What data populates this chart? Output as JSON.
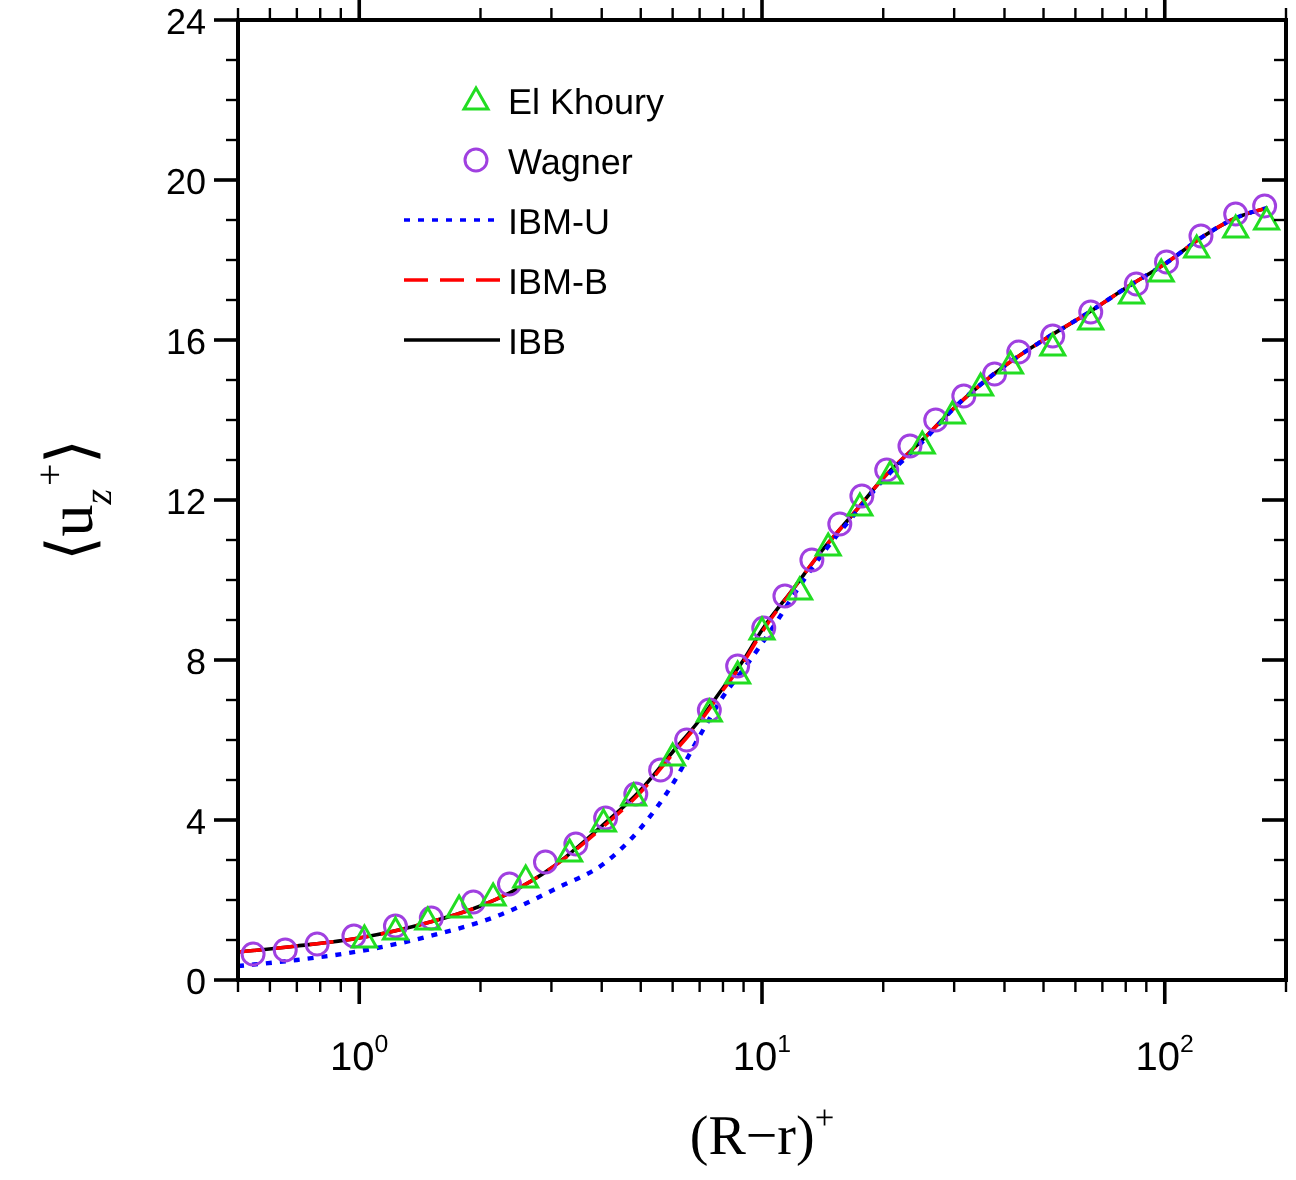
{
  "chart_data": {
    "type": "line",
    "xlabel": "(R−r)$^{+}$",
    "ylabel": "⟨u$_{z}$$^{+}$⟩",
    "log": "x",
    "xlim": [
      0.5,
      200
    ],
    "ylim": [
      0,
      24
    ],
    "xticks": [
      {
        "value": 0.5,
        "label": null
      },
      {
        "value": 0.6,
        "label": null
      },
      {
        "value": 0.7,
        "label": null
      },
      {
        "value": 0.8,
        "label": null
      },
      {
        "value": 0.9,
        "label": null
      },
      {
        "value": 1,
        "label": "10$^{0}$"
      },
      {
        "value": 2,
        "label": null
      },
      {
        "value": 3,
        "label": null
      },
      {
        "value": 4,
        "label": null
      },
      {
        "value": 5,
        "label": null
      },
      {
        "value": 6,
        "label": null
      },
      {
        "value": 7,
        "label": null
      },
      {
        "value": 8,
        "label": null
      },
      {
        "value": 9,
        "label": null
      },
      {
        "value": 10,
        "label": "10$^{1}$"
      },
      {
        "value": 20,
        "label": null
      },
      {
        "value": 30,
        "label": null
      },
      {
        "value": 40,
        "label": null
      },
      {
        "value": 50,
        "label": null
      },
      {
        "value": 60,
        "label": null
      },
      {
        "value": 70,
        "label": null
      },
      {
        "value": 80,
        "label": null
      },
      {
        "value": 90,
        "label": null
      },
      {
        "value": 100,
        "label": "10$^{2}$"
      },
      {
        "value": 200,
        "label": null
      }
    ],
    "yticks": [
      0,
      {
        "value": 1,
        "label": null
      },
      {
        "value": 2,
        "label": null
      },
      {
        "value": 3,
        "label": null
      },
      4,
      {
        "value": 5,
        "label": null
      },
      {
        "value": 6,
        "label": null
      },
      {
        "value": 7,
        "label": null
      },
      8,
      {
        "value": 9,
        "label": null
      },
      {
        "value": 10,
        "label": null
      },
      {
        "value": 11,
        "label": null
      },
      12,
      {
        "value": 13,
        "label": null
      },
      {
        "value": 14,
        "label": null
      },
      {
        "value": 15,
        "label": null
      },
      16,
      {
        "value": 17,
        "label": null
      },
      {
        "value": 18,
        "label": null
      },
      {
        "value": 19,
        "label": null
      },
      20,
      {
        "value": 21,
        "label": null
      },
      {
        "value": 22,
        "label": null
      },
      {
        "value": 23,
        "label": null
      },
      24
    ],
    "grid": false,
    "legend": "top left",
    "series": [
      {
        "name": "El Khoury",
        "type": "scatter",
        "marker": "triangle",
        "color": "#22dd22",
        "x": [
          1.03,
          1.23,
          1.48,
          1.77,
          2.15,
          2.59,
          3.33,
          4.04,
          4.8,
          6.0,
          7.4,
          8.7,
          10,
          12.4,
          14.6,
          17.5,
          20.8,
          25,
          29.7,
          34.9,
          41.4,
          52.7,
          65.5,
          82.7,
          98,
          120,
          150,
          179
        ],
        "values": [
          1.05,
          1.25,
          1.5,
          1.8,
          2.1,
          2.55,
          3.2,
          3.95,
          4.6,
          5.6,
          6.7,
          7.65,
          8.75,
          9.75,
          10.85,
          11.85,
          12.65,
          13.4,
          14.15,
          14.85,
          15.4,
          15.85,
          16.5,
          17.15,
          17.7,
          18.3,
          18.8,
          19.0
        ]
      },
      {
        "name": "Wagner",
        "type": "scatter",
        "marker": "circle",
        "color": "#a040e0",
        "x": [
          0.545,
          0.655,
          0.786,
          0.97,
          1.23,
          1.51,
          1.92,
          2.36,
          2.9,
          3.45,
          4.09,
          4.86,
          5.6,
          6.5,
          7.4,
          8.7,
          10.1,
          11.4,
          13.3,
          15.6,
          17.7,
          20.4,
          23.3,
          27,
          31.7,
          37.8,
          43.4,
          52.7,
          65.5,
          85,
          101,
          123,
          150,
          177
        ],
        "values": [
          0.65,
          0.75,
          0.9,
          1.1,
          1.35,
          1.55,
          1.95,
          2.4,
          2.95,
          3.4,
          4.05,
          4.65,
          5.25,
          6.0,
          6.75,
          7.85,
          8.8,
          9.6,
          10.5,
          11.4,
          12.1,
          12.75,
          13.35,
          14.0,
          14.6,
          15.15,
          15.7,
          16.1,
          16.7,
          17.4,
          17.95,
          18.6,
          19.15,
          19.35
        ]
      },
      {
        "name": "IBM-U",
        "line_style": "dotted",
        "color": "#0000ff",
        "x": [
          0.5,
          0.7,
          1,
          1.5,
          2.2,
          3.1,
          4.1,
          5,
          6,
          7,
          7.9,
          9.2,
          10.7,
          12.4,
          14.5,
          17,
          20,
          25,
          30,
          40,
          50,
          65,
          80,
          100,
          125,
          150,
          180
        ],
        "values": [
          0.35,
          0.5,
          0.72,
          1.1,
          1.6,
          2.3,
          2.95,
          3.8,
          4.9,
          6.1,
          7.0,
          7.9,
          8.85,
          9.85,
          10.8,
          11.65,
          12.5,
          13.45,
          14.3,
          15.35,
          16.0,
          16.7,
          17.3,
          17.9,
          18.6,
          19.05,
          19.3
        ]
      },
      {
        "name": "IBM-B",
        "line_style": "dashed",
        "color": "#ff0000",
        "x": [
          0.5,
          0.7,
          1,
          1.5,
          2,
          3,
          4,
          5,
          6,
          7,
          8,
          9,
          10,
          12,
          14,
          17,
          20,
          25,
          30,
          40,
          50,
          65,
          80,
          100,
          125,
          150,
          180
        ],
        "values": [
          0.7,
          0.85,
          1.05,
          1.45,
          1.85,
          2.8,
          3.8,
          4.7,
          5.65,
          6.45,
          7.25,
          7.95,
          8.7,
          9.8,
          10.7,
          11.7,
          12.55,
          13.5,
          14.3,
          15.35,
          16.0,
          16.7,
          17.3,
          17.9,
          18.6,
          19.05,
          19.3
        ]
      },
      {
        "name": "IBB",
        "line_style": "solid",
        "color": "#000000",
        "x": [
          0.5,
          0.7,
          1,
          1.5,
          2,
          3,
          4,
          5,
          6,
          7,
          8,
          9,
          10,
          12,
          14,
          17,
          20,
          25,
          30,
          40,
          50,
          65,
          80,
          100,
          125,
          150,
          180
        ],
        "values": [
          0.7,
          0.85,
          1.05,
          1.45,
          1.85,
          2.8,
          3.85,
          4.75,
          5.7,
          6.5,
          7.3,
          8.0,
          8.75,
          9.8,
          10.7,
          11.7,
          12.55,
          13.5,
          14.3,
          15.35,
          16.0,
          16.7,
          17.3,
          17.9,
          18.6,
          19.05,
          19.3
        ]
      }
    ]
  }
}
